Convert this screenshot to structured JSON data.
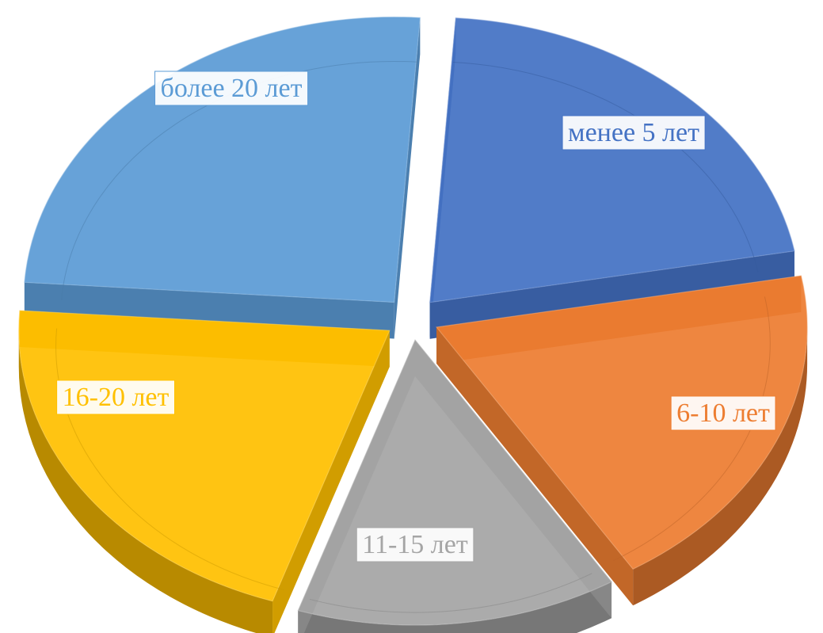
{
  "chart_data": {
    "type": "pie",
    "subtype": "exploded-3d",
    "title": "",
    "legend": "none",
    "slices": [
      {
        "label": "менее 5 лет",
        "value": 21,
        "color": "#4472C4"
      },
      {
        "label": "6-10 лет",
        "value": 19,
        "color": "#ED7D31"
      },
      {
        "label": "11-15 лет",
        "value": 14,
        "color": "#A5A5A5"
      },
      {
        "label": "16-20 лет",
        "value": 21,
        "color": "#FFC000"
      },
      {
        "label": "более 20 лет",
        "value": 25,
        "color": "#5B9BD5"
      }
    ]
  }
}
